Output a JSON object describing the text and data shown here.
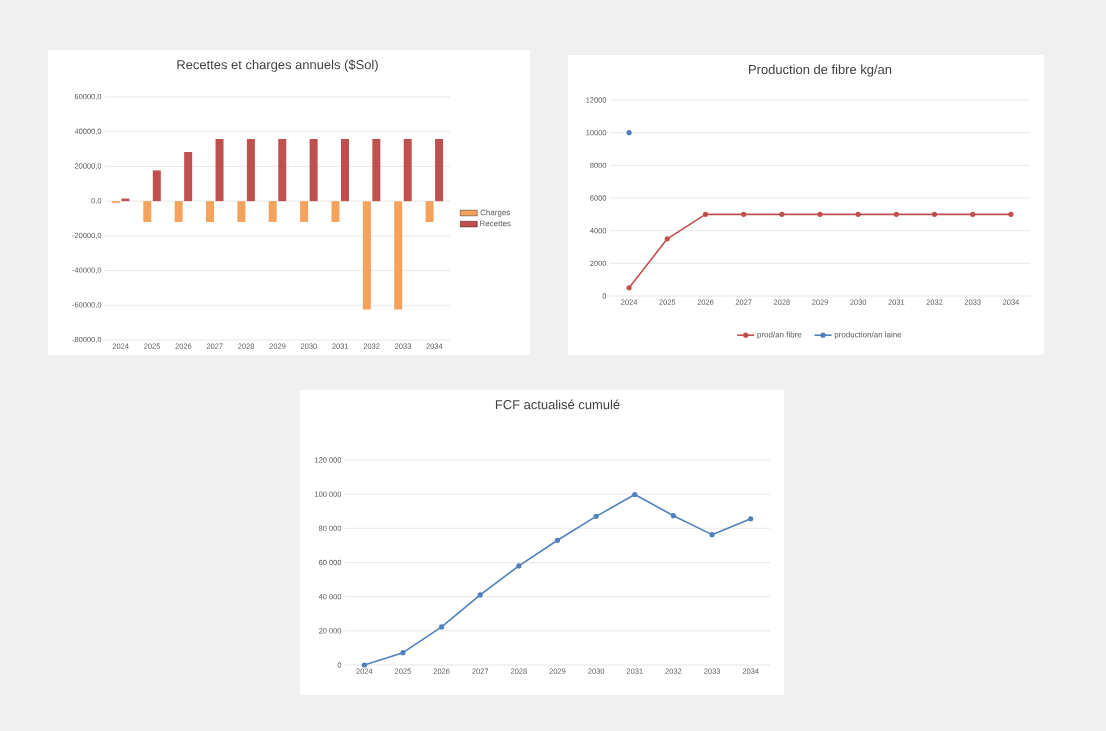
{
  "chart_data": [
    {
      "type": "bar",
      "title": "Recettes et charges annuels ($Sol)",
      "categories": [
        "2024",
        "2025",
        "2026",
        "2027",
        "2028",
        "2029",
        "2030",
        "2031",
        "2032",
        "2033",
        "2034"
      ],
      "series": [
        {
          "name": "Charges",
          "color": "#f5a35c",
          "values": [
            -1000,
            -12000,
            -12000,
            -12000,
            -12000,
            -12000,
            -12000,
            -12000,
            -62500,
            -62500,
            -12000
          ]
        },
        {
          "name": "Recettes",
          "color": "#c0504d",
          "values": [
            1500,
            17700,
            28300,
            35800,
            35800,
            35800,
            35800,
            35800,
            35800,
            35800,
            35800
          ]
        }
      ],
      "ylim": [
        -80000,
        60000
      ],
      "yticks": [
        {
          "value": -80000,
          "label": "-80000,0"
        },
        {
          "value": -60000,
          "label": "-60000,0"
        },
        {
          "value": -40000,
          "label": "-40000,0"
        },
        {
          "value": -20000,
          "label": "-20000,0"
        },
        {
          "value": 0,
          "label": "0,0"
        },
        {
          "value": 20000,
          "label": "20000,0"
        },
        {
          "value": 40000,
          "label": "40000,0"
        },
        {
          "value": 60000,
          "label": "60000,0"
        }
      ],
      "grid": "y",
      "legend": "right"
    },
    {
      "type": "line",
      "title": "Production de fibre kg/an",
      "categories": [
        "2024",
        "2025",
        "2026",
        "2027",
        "2028",
        "2029",
        "2030",
        "2031",
        "2032",
        "2033",
        "2034"
      ],
      "series": [
        {
          "name": "prod/an fibre",
          "color": "#c0504d",
          "values": [
            500,
            3500,
            5000,
            5000,
            5000,
            5000,
            5000,
            5000,
            5000,
            5000,
            5000
          ]
        },
        {
          "name": "production/an laine",
          "color": "#4f81bd",
          "values": [
            10000,
            null,
            null,
            null,
            null,
            null,
            null,
            null,
            null,
            null,
            null
          ]
        }
      ],
      "ylim": [
        0,
        12000
      ],
      "yticks": [
        0,
        2000,
        4000,
        6000,
        8000,
        10000,
        12000
      ],
      "grid": "y",
      "legend": "bottom",
      "marker": "circle"
    },
    {
      "type": "line",
      "title": "FCF actualisé cumulé",
      "categories": [
        "2024",
        "2025",
        "2026",
        "2027",
        "2028",
        "2029",
        "2030",
        "2031",
        "2032",
        "2033",
        "2034"
      ],
      "values": [
        0,
        7200,
        22300,
        41000,
        58000,
        73000,
        87000,
        99800,
        87400,
        76300,
        85600
      ],
      "color": "#4f81bd",
      "ylim": [
        0,
        120000
      ],
      "yticks": [
        0,
        {
          "value": 20000,
          "label": "20 000"
        },
        {
          "value": 40000,
          "label": "40 000"
        },
        {
          "value": 60000,
          "label": "60 000"
        },
        {
          "value": 80000,
          "label": "80 000"
        },
        {
          "value": 100000,
          "label": "100 000"
        },
        {
          "value": 120000,
          "label": "120 000"
        }
      ],
      "grid": "y",
      "marker": "circle"
    }
  ]
}
